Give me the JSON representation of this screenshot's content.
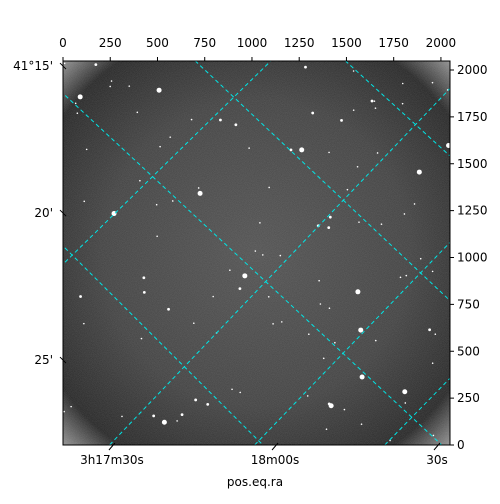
{
  "chart_data": {
    "type": "image",
    "xlabel": "pos.eq.ra",
    "xlim": [
      0,
      2048
    ],
    "ylim": [
      0,
      2048
    ],
    "xticks": [
      0,
      250,
      500,
      750,
      1000,
      1250,
      1500,
      1750,
      2000
    ],
    "yticks": [
      0,
      250,
      500,
      750,
      1000,
      1250,
      1500,
      1750,
      2000
    ],
    "ra_ticks": [
      {
        "value": 259,
        "label": "3h17m30s"
      },
      {
        "value": 1122,
        "label": "18m00s"
      },
      {
        "value": 1979,
        "label": "30s"
      }
    ],
    "dec_ticks": [
      {
        "value": 2021,
        "label": "41°15'"
      },
      {
        "value": 1237,
        "label": "20'"
      },
      {
        "value": 453,
        "label": "25'"
      }
    ],
    "grid_color": "#00e5e5"
  }
}
